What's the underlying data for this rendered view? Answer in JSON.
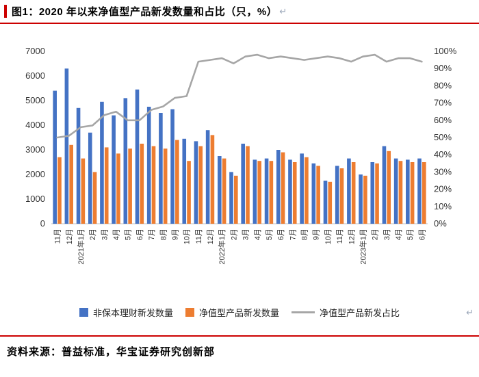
{
  "title": {
    "text": "图1：2020 年以来净值型产品新发数量和占比（只，%）",
    "mark": "↵"
  },
  "colors": {
    "accent_red": "#CC0000",
    "bar_blue": "#4472C4",
    "bar_orange": "#ED7D31",
    "line_gray": "#A6A6A6",
    "axis_text": "#333333",
    "baseline": "#BFBFBF"
  },
  "legend": {
    "items": [
      {
        "label": "非保本理财新发数量",
        "type": "bar"
      },
      {
        "label": "净值型产品新发数量",
        "type": "bar"
      },
      {
        "label": "净值型产品新发占比",
        "type": "line"
      }
    ],
    "mark": "↵"
  },
  "footer": {
    "text": "资料来源：普益标准，华宝证券研究创新部"
  },
  "chart_data": {
    "type": "bar",
    "subtype": "grouped bars with secondary-axis line",
    "title": "2020 年以来净值型产品新发数量和占比（只，%）",
    "categories": [
      "11月",
      "12月",
      "2021年1月",
      "2月",
      "3月",
      "4月",
      "5月",
      "6月",
      "7月",
      "8月",
      "9月",
      "10月",
      "11月",
      "12月",
      "2022年1月",
      "2月",
      "3月",
      "4月",
      "5月",
      "6月",
      "7月",
      "8月",
      "9月",
      "10月",
      "11月",
      "12月",
      "2023年1月",
      "2月",
      "3月",
      "4月",
      "5月",
      "6月"
    ],
    "series": [
      {
        "name": "非保本理财新发数量",
        "type": "bar",
        "axis": "left",
        "color": "#4472C4",
        "values": [
          5400,
          6300,
          4700,
          3700,
          4950,
          4400,
          5100,
          5450,
          4750,
          4500,
          4650,
          3450,
          3350,
          3800,
          2750,
          2100,
          3250,
          2600,
          2650,
          3000,
          2600,
          2850,
          2450,
          1750,
          2350,
          2650,
          2000,
          2500,
          3150,
          2650,
          2600,
          2650
        ]
      },
      {
        "name": "净值型产品新发数量",
        "type": "bar",
        "axis": "left",
        "color": "#ED7D31",
        "values": [
          2700,
          3200,
          2650,
          2100,
          3100,
          2850,
          3050,
          3250,
          3150,
          3050,
          3400,
          2550,
          3150,
          3600,
          2650,
          1950,
          3150,
          2550,
          2550,
          2900,
          2500,
          2700,
          2350,
          1700,
          2250,
          2500,
          1950,
          2450,
          2950,
          2550,
          2500,
          2500
        ]
      },
      {
        "name": "净值型产品新发占比",
        "type": "line",
        "axis": "right",
        "color": "#A6A6A6",
        "values_pct": [
          50,
          51,
          56,
          57,
          63,
          65,
          60,
          60,
          66,
          68,
          73,
          74,
          94,
          95,
          96,
          93,
          97,
          98,
          96,
          97,
          96,
          95,
          96,
          97,
          96,
          94,
          97,
          98,
          94,
          96,
          96,
          94
        ]
      }
    ],
    "left_axis": {
      "min": 0,
      "max": 7000,
      "step": 1000
    },
    "right_axis": {
      "min": 0,
      "max": 100,
      "step": 10,
      "suffix": "%"
    },
    "grid": false,
    "legend_position": "bottom"
  }
}
